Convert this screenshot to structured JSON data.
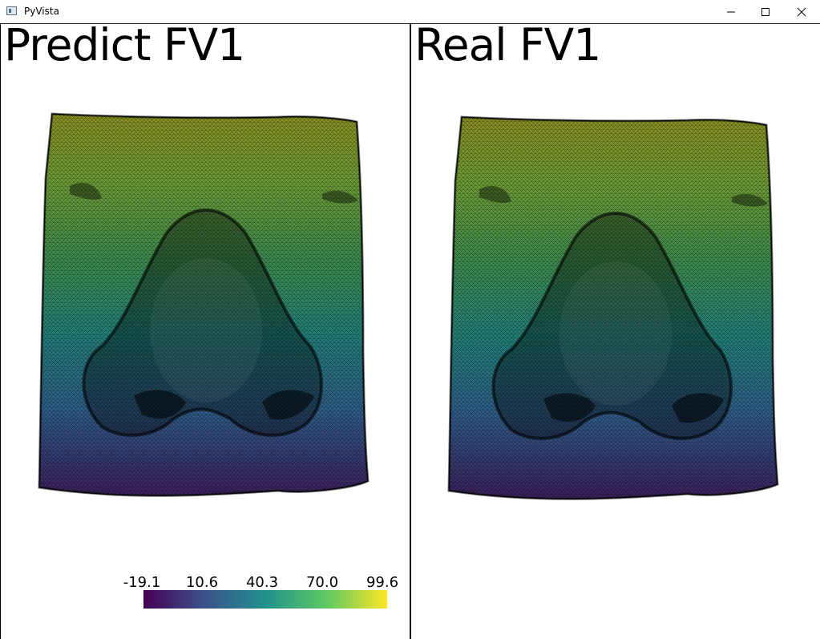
{
  "window": {
    "title": "PyVista",
    "controls": [
      "minimize",
      "maximize",
      "close"
    ]
  },
  "left_view": {
    "title": "Predict FV1"
  },
  "right_view": {
    "title": "Real FV1"
  },
  "colorbar": {
    "colormap": "viridis",
    "tick_labels": [
      "-19.1",
      "10.6",
      "40.3",
      "70.0",
      "99.6"
    ],
    "colors": [
      "#440154",
      "#3b528b",
      "#21918c",
      "#5ec962",
      "#fde725"
    ]
  }
}
